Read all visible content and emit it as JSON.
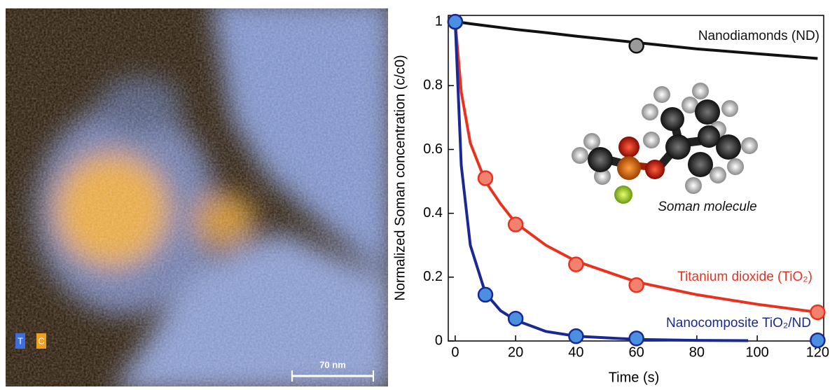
{
  "image": {
    "element_labels": [
      "T",
      "C"
    ],
    "scale_bar": "70 nm"
  },
  "chart_data": {
    "type": "line",
    "xlabel": "Time (s)",
    "ylabel": "Normalized Soman concentration (c/c0)",
    "annotation": "Soman molecule",
    "xlim": [
      -2.3,
      122
    ],
    "ylim": [
      0,
      1.02
    ],
    "xticks": [
      0,
      20,
      40,
      60,
      80,
      100,
      120
    ],
    "yticks": [
      0,
      0.2,
      0.4,
      0.6,
      0.8,
      1
    ],
    "series": [
      {
        "name": "Nanodiamonds (ND)",
        "color": "#111111",
        "marker_color": "#9a9a9a",
        "x": [
          0,
          60
        ],
        "values": [
          1,
          0.925
        ],
        "fit": {
          "x": [
            0,
            2,
            5,
            10,
            15,
            20,
            30,
            40,
            60,
            80,
            100,
            120
          ],
          "values": [
            1,
            0.998,
            0.994,
            0.988,
            0.982,
            0.976,
            0.966,
            0.955,
            0.935,
            0.915,
            0.9,
            0.885
          ]
        }
      },
      {
        "name": "Titanium dioxide (TiO₂)",
        "color": "#e8321e",
        "marker_color": "#f2826f",
        "x": [
          0,
          10,
          20,
          40,
          60,
          120
        ],
        "values": [
          1,
          0.51,
          0.365,
          0.24,
          0.175,
          0.09
        ],
        "fit": {
          "x": [
            0,
            2,
            5,
            10,
            15,
            20,
            30,
            40,
            60,
            80,
            100,
            120
          ],
          "values": [
            1,
            0.78,
            0.62,
            0.5,
            0.43,
            0.37,
            0.3,
            0.25,
            0.185,
            0.145,
            0.115,
            0.09
          ]
        }
      },
      {
        "name": "Nanocomposite TiO₂/ND",
        "color": "#1a2896",
        "marker_color": "#4a8fe0",
        "x": [
          0,
          10,
          20,
          40,
          60,
          120
        ],
        "values": [
          1,
          0.145,
          0.07,
          0.015,
          0.008,
          0.002
        ],
        "fit": {
          "x": [
            0,
            2,
            5,
            10,
            15,
            20,
            30,
            40,
            60,
            80,
            97
          ],
          "values": [
            1,
            0.55,
            0.3,
            0.15,
            0.095,
            0.065,
            0.03,
            0.015,
            0.005,
            0.002,
            0.001
          ]
        }
      }
    ]
  }
}
